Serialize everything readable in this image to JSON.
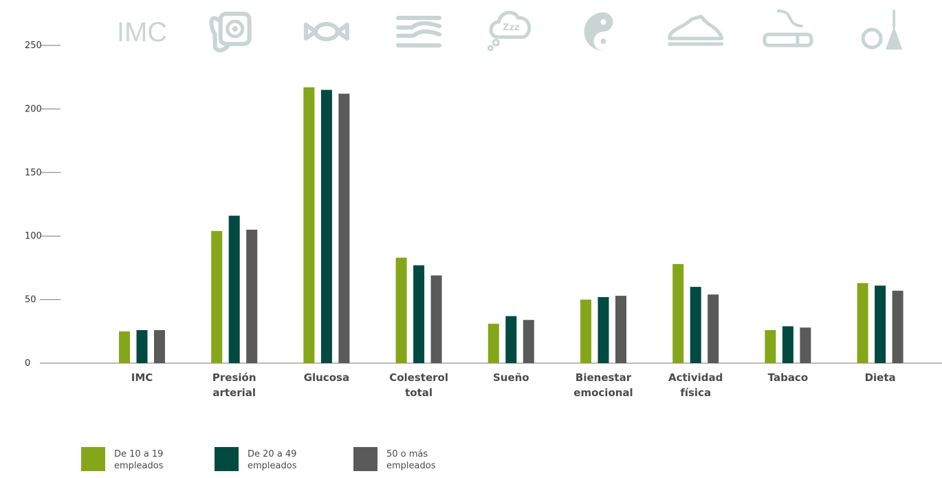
{
  "chart_data": {
    "type": "bar",
    "categories": [
      [
        "IMC"
      ],
      [
        "Presión",
        "arterial"
      ],
      [
        "Glucosa"
      ],
      [
        "Colesterol",
        "total"
      ],
      [
        "Sueño"
      ],
      [
        "Bienestar",
        "emocional"
      ],
      [
        "Actividad",
        "física"
      ],
      [
        "Tabaco"
      ],
      [
        "Dieta"
      ]
    ],
    "series": [
      {
        "name": "De 10 a 19 empleados",
        "legend_lines": [
          "De 10 a 19",
          "empleados"
        ],
        "color": "#86a61a",
        "values": [
          25,
          104,
          217,
          83,
          31,
          50,
          78,
          26,
          63
        ]
      },
      {
        "name": "De 20 a 49 empleados",
        "legend_lines": [
          "De 20 a 49",
          "empleados"
        ],
        "color": "#004a41",
        "values": [
          26,
          116,
          215,
          77,
          37,
          52,
          60,
          29,
          61
        ]
      },
      {
        "name": "50 o más empleados",
        "legend_lines": [
          "50 o más",
          "empleados"
        ],
        "color": "#5a5a5a",
        "values": [
          26,
          105,
          212,
          69,
          34,
          53,
          54,
          28,
          57
        ]
      }
    ],
    "ylim": [
      0,
      250
    ],
    "yticks": [
      0,
      50,
      100,
      150,
      200,
      250
    ],
    "title": "",
    "xlabel": "",
    "ylabel": "",
    "legend_position": "bottom-left",
    "icons": [
      {
        "name": "imc-icon",
        "text": "IMC"
      },
      {
        "name": "blood-pressure-icon"
      },
      {
        "name": "candy-icon"
      },
      {
        "name": "cholesterol-icon"
      },
      {
        "name": "sleep-icon"
      },
      {
        "name": "yin-yang-icon"
      },
      {
        "name": "sneaker-icon"
      },
      {
        "name": "cigarette-icon"
      },
      {
        "name": "diet-icon"
      }
    ],
    "icon_color": "#c9d5d3",
    "axis_color": "#777777"
  }
}
